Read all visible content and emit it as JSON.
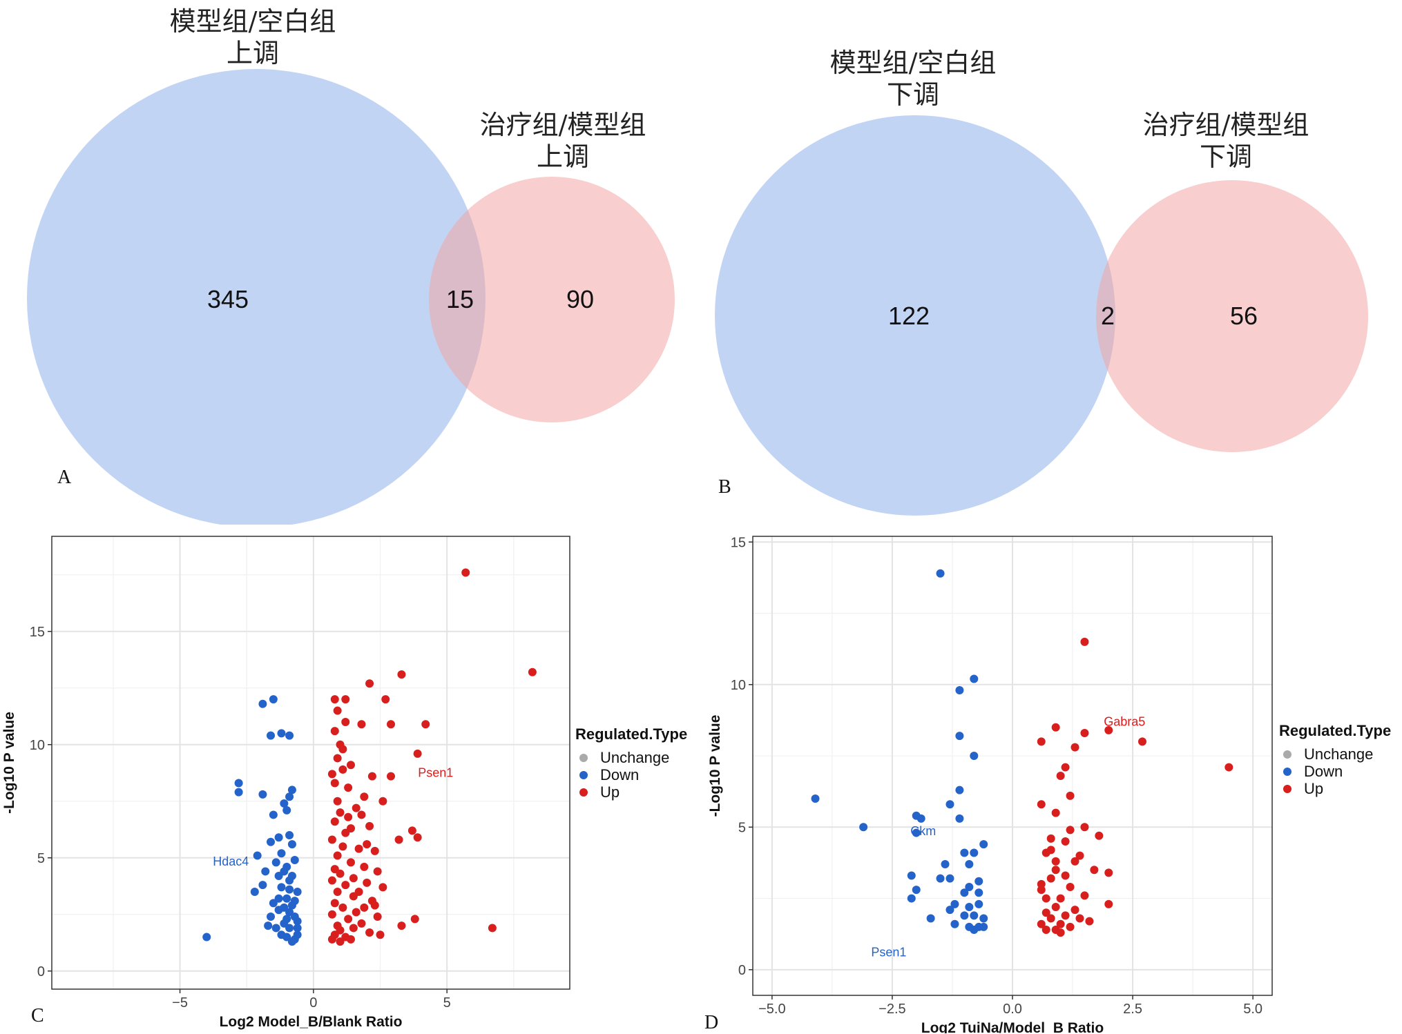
{
  "panels": {
    "a": "A",
    "b": "B",
    "c": "C",
    "d": "D"
  },
  "colors": {
    "blue_circle": "#c2d4f4",
    "red_circle": "#f7c8c8",
    "down": "#2463c9",
    "up": "#d91e1e",
    "unchange": "#aaaaaa"
  },
  "chart_data": [
    {
      "type": "venn",
      "panel": "A",
      "sets": [
        {
          "title_line1": "模型组/空白组",
          "title_line2": "上调",
          "only": 345
        },
        {
          "title_line1": "治疗组/模型组",
          "title_line2": "上调",
          "only": 90
        }
      ],
      "overlap": 15
    },
    {
      "type": "venn",
      "panel": "B",
      "sets": [
        {
          "title_line1": "模型组/空白组",
          "title_line2": "下调",
          "only": 122
        },
        {
          "title_line1": "治疗组/模型组",
          "title_line2": "下调",
          "only": 56
        }
      ],
      "overlap": 2
    },
    {
      "type": "scatter",
      "panel": "C",
      "xlabel": "Log2 Model_B/Blank Ratio",
      "ylabel": "-Log10 P value",
      "xlim": [
        -9.8,
        9.6
      ],
      "ylim": [
        -0.8,
        19.2
      ],
      "xticks": [
        -5,
        0,
        5
      ],
      "xtick_labels": [
        "−5",
        "0",
        "5"
      ],
      "yticks": [
        0,
        5,
        10,
        15
      ],
      "yticks_minor": [
        2.5,
        7.5,
        12.5,
        17.5
      ],
      "xticks_minor": [
        -7.5,
        -2.5,
        2.5,
        7.5
      ],
      "legend": {
        "title": "Regulated.Type",
        "items": [
          "Unchange",
          "Down",
          "Up"
        ],
        "placement": "right"
      },
      "annotations": [
        {
          "text": "Hdac4",
          "x": -1.8,
          "y": 5.2,
          "color": "down"
        },
        {
          "text": "Psen1",
          "x": 3.8,
          "y": 9.3,
          "color": "up"
        }
      ],
      "series": [
        {
          "name": "Down",
          "points": [
            [
              -4.0,
              1.5
            ],
            [
              -2.8,
              8.3
            ],
            [
              -2.8,
              7.9
            ],
            [
              -1.9,
              11.8
            ],
            [
              -1.6,
              10.4
            ],
            [
              -1.5,
              12.0
            ],
            [
              -1.2,
              10.5
            ],
            [
              -0.9,
              10.4
            ],
            [
              -0.8,
              8.0
            ],
            [
              -1.9,
              7.8
            ],
            [
              -1.1,
              7.4
            ],
            [
              -1.5,
              6.9
            ],
            [
              -0.9,
              7.7
            ],
            [
              -1.0,
              7.1
            ],
            [
              -1.3,
              5.9
            ],
            [
              -1.6,
              5.7
            ],
            [
              -0.9,
              6.0
            ],
            [
              -1.2,
              5.2
            ],
            [
              -2.1,
              5.1
            ],
            [
              -1.8,
              4.4
            ],
            [
              -1.9,
              3.8
            ],
            [
              -1.4,
              4.8
            ],
            [
              -2.2,
              3.5
            ],
            [
              -1.5,
              3.0
            ],
            [
              -1.3,
              4.2
            ],
            [
              -1.0,
              4.6
            ],
            [
              -0.8,
              5.6
            ],
            [
              -1.6,
              2.4
            ],
            [
              -1.1,
              2.1
            ],
            [
              -0.9,
              3.6
            ],
            [
              -1.0,
              3.2
            ],
            [
              -0.8,
              2.9
            ],
            [
              -0.9,
              2.6
            ],
            [
              -1.2,
              1.6
            ],
            [
              -1.3,
              2.7
            ],
            [
              -0.7,
              1.4
            ],
            [
              -1.4,
              1.9
            ],
            [
              -0.6,
              2.2
            ],
            [
              -0.9,
              1.9
            ],
            [
              -0.7,
              3.1
            ],
            [
              -1.0,
              1.5
            ],
            [
              -1.1,
              2.8
            ],
            [
              -0.6,
              1.6
            ],
            [
              -0.8,
              4.2
            ],
            [
              -0.7,
              4.9
            ],
            [
              -1.7,
              2.0
            ],
            [
              -0.6,
              3.5
            ],
            [
              -1.2,
              3.7
            ],
            [
              -0.8,
              1.3
            ],
            [
              -1.0,
              2.3
            ],
            [
              -0.7,
              2.4
            ],
            [
              -0.9,
              4.0
            ],
            [
              -1.1,
              4.4
            ],
            [
              -0.6,
              1.9
            ],
            [
              -1.3,
              3.2
            ]
          ]
        },
        {
          "name": "Up",
          "points": [
            [
              5.7,
              17.6
            ],
            [
              8.2,
              13.2
            ],
            [
              3.3,
              13.1
            ],
            [
              2.1,
              12.7
            ],
            [
              2.7,
              12.0
            ],
            [
              4.2,
              10.9
            ],
            [
              2.9,
              10.9
            ],
            [
              1.8,
              10.9
            ],
            [
              3.9,
              9.6
            ],
            [
              2.9,
              8.6
            ],
            [
              2.6,
              7.5
            ],
            [
              3.9,
              5.9
            ],
            [
              3.2,
              5.8
            ],
            [
              3.7,
              6.2
            ],
            [
              2.2,
              8.6
            ],
            [
              1.9,
              7.7
            ],
            [
              1.4,
              6.3
            ],
            [
              2.1,
              6.4
            ],
            [
              2.3,
              5.3
            ],
            [
              2.4,
              4.4
            ],
            [
              2.0,
              3.9
            ],
            [
              2.6,
              3.7
            ],
            [
              1.7,
              3.5
            ],
            [
              1.9,
              2.8
            ],
            [
              2.4,
              2.4
            ],
            [
              2.1,
              1.7
            ],
            [
              2.5,
              1.6
            ],
            [
              3.3,
              2.0
            ],
            [
              3.8,
              2.3
            ],
            [
              6.7,
              1.9
            ],
            [
              1.2,
              11.0
            ],
            [
              1.0,
              10.0
            ],
            [
              0.8,
              12.0
            ],
            [
              0.9,
              9.4
            ],
            [
              1.1,
              8.9
            ],
            [
              0.7,
              8.7
            ],
            [
              1.3,
              8.1
            ],
            [
              0.9,
              7.5
            ],
            [
              1.0,
              7.0
            ],
            [
              0.8,
              6.6
            ],
            [
              1.2,
              6.1
            ],
            [
              0.7,
              5.8
            ],
            [
              1.1,
              5.5
            ],
            [
              0.9,
              5.1
            ],
            [
              1.4,
              4.8
            ],
            [
              0.8,
              4.5
            ],
            [
              1.0,
              4.3
            ],
            [
              0.7,
              4.0
            ],
            [
              1.2,
              3.8
            ],
            [
              0.9,
              3.5
            ],
            [
              1.5,
              3.3
            ],
            [
              0.8,
              3.0
            ],
            [
              1.1,
              2.8
            ],
            [
              0.7,
              2.5
            ],
            [
              1.3,
              2.3
            ],
            [
              0.9,
              2.0
            ],
            [
              1.0,
              1.8
            ],
            [
              0.8,
              1.6
            ],
            [
              1.2,
              1.5
            ],
            [
              0.7,
              1.4
            ],
            [
              1.6,
              2.6
            ],
            [
              1.5,
              4.1
            ],
            [
              1.7,
              5.4
            ],
            [
              1.3,
              6.8
            ],
            [
              1.6,
              7.2
            ],
            [
              0.8,
              10.6
            ],
            [
              1.1,
              9.8
            ],
            [
              1.5,
              1.9
            ],
            [
              1.8,
              2.1
            ],
            [
              1.9,
              4.6
            ],
            [
              1.4,
              1.4
            ],
            [
              2.2,
              3.1
            ],
            [
              0.9,
              11.5
            ],
            [
              1.2,
              12.0
            ],
            [
              1.0,
              1.3
            ],
            [
              0.8,
              8.3
            ],
            [
              1.4,
              9.1
            ],
            [
              1.8,
              6.9
            ],
            [
              2.0,
              5.6
            ],
            [
              2.3,
              2.9
            ]
          ]
        }
      ]
    },
    {
      "type": "scatter",
      "panel": "D",
      "xlabel": "Log2 TuiNa/Model_B Ratio",
      "ylabel": "-Log10 P value",
      "xlim": [
        -5.4,
        5.4
      ],
      "ylim": [
        -0.9,
        15.2
      ],
      "xticks": [
        -5.0,
        -2.5,
        0.0,
        2.5,
        5.0
      ],
      "xtick_labels": [
        "−5.0",
        "−2.5",
        "0.0",
        "2.5",
        "5.0"
      ],
      "yticks": [
        0,
        5,
        10,
        15
      ],
      "yticks_minor": [
        2.5,
        7.5,
        12.5
      ],
      "xticks_minor": [
        -3.75,
        -1.25,
        1.25,
        3.75
      ],
      "legend": {
        "title": "Regulated.Type",
        "items": [
          "Unchange",
          "Down",
          "Up"
        ],
        "placement": "right"
      },
      "annotations": [
        {
          "text": "Ckm",
          "x": -2.0,
          "y": 5.2,
          "color": "down"
        },
        {
          "text": "Psen1",
          "x": -2.5,
          "y": 1.2,
          "color": "down"
        },
        {
          "text": "Gabra5",
          "x": 1.9,
          "y": 8.8,
          "color": "up"
        }
      ],
      "series": [
        {
          "name": "Down",
          "points": [
            [
              -1.5,
              13.9
            ],
            [
              -0.8,
              10.2
            ],
            [
              -1.1,
              9.8
            ],
            [
              -1.1,
              8.2
            ],
            [
              -0.8,
              7.5
            ],
            [
              -1.1,
              6.3
            ],
            [
              -1.3,
              5.8
            ],
            [
              -4.1,
              6.0
            ],
            [
              -3.1,
              5.0
            ],
            [
              -2.0,
              5.4
            ],
            [
              -1.9,
              5.3
            ],
            [
              -2.0,
              4.8
            ],
            [
              -1.1,
              5.3
            ],
            [
              -1.0,
              4.1
            ],
            [
              -0.8,
              4.1
            ],
            [
              -0.6,
              4.4
            ],
            [
              -1.4,
              3.7
            ],
            [
              -1.3,
              3.2
            ],
            [
              -0.9,
              3.7
            ],
            [
              -0.7,
              3.1
            ],
            [
              -2.1,
              3.3
            ],
            [
              -2.0,
              2.8
            ],
            [
              -1.5,
              3.2
            ],
            [
              -1.2,
              2.3
            ],
            [
              -0.9,
              2.2
            ],
            [
              -1.0,
              2.7
            ],
            [
              -0.8,
              1.9
            ],
            [
              -0.6,
              1.8
            ],
            [
              -0.7,
              1.5
            ],
            [
              -1.3,
              2.1
            ],
            [
              -2.1,
              2.5
            ],
            [
              -1.7,
              1.8
            ],
            [
              -1.2,
              1.6
            ],
            [
              -0.9,
              1.5
            ],
            [
              -0.7,
              2.3
            ],
            [
              -0.8,
              1.4
            ],
            [
              -0.6,
              1.5
            ],
            [
              -1.0,
              1.9
            ],
            [
              -0.7,
              2.7
            ],
            [
              -0.9,
              2.9
            ]
          ]
        },
        {
          "name": "Up",
          "points": [
            [
              1.5,
              11.5
            ],
            [
              4.5,
              7.1
            ],
            [
              2.7,
              8.0
            ],
            [
              2.0,
              8.4
            ],
            [
              0.9,
              8.5
            ],
            [
              1.5,
              8.3
            ],
            [
              1.3,
              7.8
            ],
            [
              0.6,
              8.0
            ],
            [
              1.1,
              7.1
            ],
            [
              1.0,
              6.8
            ],
            [
              1.2,
              6.1
            ],
            [
              0.6,
              5.8
            ],
            [
              0.9,
              5.5
            ],
            [
              1.2,
              4.9
            ],
            [
              1.8,
              4.7
            ],
            [
              1.1,
              4.5
            ],
            [
              0.8,
              4.2
            ],
            [
              0.7,
              4.1
            ],
            [
              1.4,
              4.0
            ],
            [
              0.9,
              3.8
            ],
            [
              2.0,
              3.4
            ],
            [
              1.7,
              3.5
            ],
            [
              0.8,
              3.2
            ],
            [
              1.2,
              2.9
            ],
            [
              0.6,
              2.8
            ],
            [
              1.0,
              2.5
            ],
            [
              0.9,
              2.2
            ],
            [
              1.3,
              2.1
            ],
            [
              0.7,
              2.0
            ],
            [
              1.1,
              1.9
            ],
            [
              0.8,
              1.8
            ],
            [
              0.6,
              1.6
            ],
            [
              1.0,
              1.6
            ],
            [
              1.2,
              1.5
            ],
            [
              0.9,
              1.4
            ],
            [
              0.7,
              1.4
            ],
            [
              1.4,
              1.8
            ],
            [
              1.6,
              1.7
            ],
            [
              2.0,
              2.3
            ],
            [
              1.5,
              2.6
            ],
            [
              0.8,
              4.6
            ],
            [
              1.1,
              3.3
            ],
            [
              0.7,
              2.5
            ],
            [
              1.3,
              3.8
            ],
            [
              1.0,
              1.3
            ],
            [
              1.5,
              5.0
            ],
            [
              0.9,
              3.5
            ],
            [
              0.6,
              3.0
            ]
          ]
        }
      ]
    }
  ]
}
